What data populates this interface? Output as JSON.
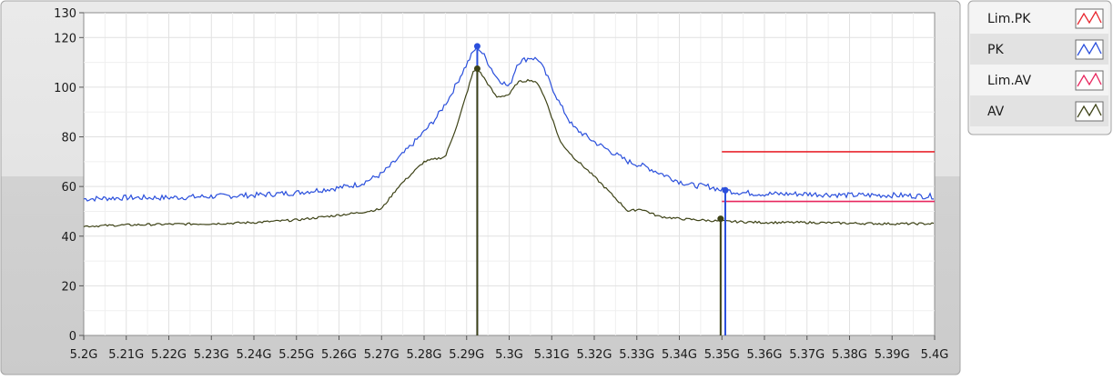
{
  "chart_data": {
    "type": "line",
    "title": "",
    "xlabel": "",
    "ylabel": "",
    "xlim": [
      5.2,
      5.4
    ],
    "ylim": [
      0,
      130
    ],
    "x_ticks": [
      {
        "v": 5.2,
        "label": "5.2G"
      },
      {
        "v": 5.21,
        "label": "5.21G"
      },
      {
        "v": 5.22,
        "label": "5.22G"
      },
      {
        "v": 5.23,
        "label": "5.23G"
      },
      {
        "v": 5.24,
        "label": "5.24G"
      },
      {
        "v": 5.25,
        "label": "5.25G"
      },
      {
        "v": 5.26,
        "label": "5.26G"
      },
      {
        "v": 5.27,
        "label": "5.27G"
      },
      {
        "v": 5.28,
        "label": "5.28G"
      },
      {
        "v": 5.29,
        "label": "5.29G"
      },
      {
        "v": 5.3,
        "label": "5.3G"
      },
      {
        "v": 5.31,
        "label": "5.31G"
      },
      {
        "v": 5.32,
        "label": "5.32G"
      },
      {
        "v": 5.33,
        "label": "5.33G"
      },
      {
        "v": 5.34,
        "label": "5.34G"
      },
      {
        "v": 5.35,
        "label": "5.35G"
      },
      {
        "v": 5.36,
        "label": "5.36G"
      },
      {
        "v": 5.37,
        "label": "5.37G"
      },
      {
        "v": 5.38,
        "label": "5.38G"
      },
      {
        "v": 5.39,
        "label": "5.39G"
      },
      {
        "v": 5.4,
        "label": "5.4G"
      }
    ],
    "y_ticks": [
      {
        "v": 0,
        "label": "0"
      },
      {
        "v": 20,
        "label": "20"
      },
      {
        "v": 40,
        "label": "40"
      },
      {
        "v": 60,
        "label": "60"
      },
      {
        "v": 80,
        "label": "80"
      },
      {
        "v": 100,
        "label": "100"
      },
      {
        "v": 120,
        "label": "120"
      },
      {
        "v": 130,
        "label": "130"
      }
    ],
    "grid": true,
    "legend_position": "right",
    "series": [
      {
        "name": "Lim.PK",
        "color": "#e8262e",
        "x": [
          5.35,
          5.4
        ],
        "y": [
          74,
          74
        ]
      },
      {
        "name": "PK",
        "color": "#2a4fdc",
        "x": [
          5.2,
          5.21,
          5.22,
          5.23,
          5.24,
          5.25,
          5.255,
          5.26,
          5.265,
          5.27,
          5.275,
          5.28,
          5.283,
          5.286,
          5.289,
          5.2915,
          5.2925,
          5.294,
          5.297,
          5.3,
          5.302,
          5.305,
          5.307,
          5.309,
          5.312,
          5.315,
          5.32,
          5.324,
          5.328,
          5.332,
          5.336,
          5.34,
          5.343,
          5.347,
          5.35,
          5.355,
          5.36,
          5.37,
          5.38,
          5.39,
          5.4
        ],
        "y": [
          55,
          55.5,
          55.5,
          56,
          56.5,
          57.5,
          58.5,
          59.5,
          61,
          65,
          73,
          82,
          88,
          96,
          106,
          114,
          116.5,
          113,
          104,
          100,
          110,
          112,
          111,
          104,
          93,
          84,
          78,
          74,
          70,
          68,
          65,
          62,
          60.5,
          60,
          58.5,
          57.5,
          57,
          57,
          56.5,
          56.5,
          56
        ]
      },
      {
        "name": "Lim.AV",
        "color": "#e8265e",
        "x": [
          5.35,
          5.4
        ],
        "y": [
          54,
          54
        ]
      },
      {
        "name": "AV",
        "color": "#3d4216",
        "x": [
          5.2,
          5.21,
          5.22,
          5.23,
          5.24,
          5.25,
          5.26,
          5.265,
          5.27,
          5.274,
          5.28,
          5.285,
          5.288,
          5.2915,
          5.2925,
          5.294,
          5.297,
          5.3,
          5.302,
          5.305,
          5.307,
          5.309,
          5.312,
          5.315,
          5.32,
          5.324,
          5.328,
          5.331,
          5.335,
          5.34,
          5.345,
          5.35,
          5.36,
          5.37,
          5.38,
          5.39,
          5.4
        ],
        "y": [
          44,
          44.5,
          44.8,
          45,
          45.5,
          46.5,
          48.5,
          49.5,
          51,
          60,
          70,
          72,
          86,
          106,
          107.5,
          104,
          96,
          97,
          102,
          103,
          101,
          93,
          78,
          72,
          64,
          57,
          50,
          51,
          48,
          47,
          46.5,
          46,
          45.5,
          45.5,
          45.2,
          45,
          45
        ]
      }
    ],
    "markers": [
      {
        "series": "PK",
        "x": 5.2925,
        "y": 116.5
      },
      {
        "series": "AV",
        "x": 5.2925,
        "y": 107.5
      },
      {
        "series": "PK",
        "x": 5.3508,
        "y": 58.5
      },
      {
        "series": "AV",
        "x": 5.3497,
        "y": 47
      }
    ]
  },
  "legend": {
    "items": [
      {
        "label": "Lim.PK",
        "color": "#e8262e"
      },
      {
        "label": "PK",
        "color": "#2a4fdc"
      },
      {
        "label": "Lim.AV",
        "color": "#e8265e"
      },
      {
        "label": "AV",
        "color": "#3d4216"
      }
    ]
  }
}
